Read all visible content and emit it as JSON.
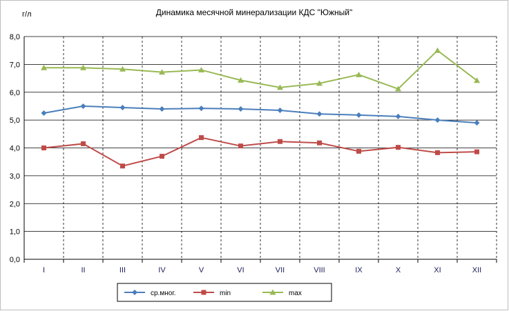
{
  "chart_data": {
    "type": "line",
    "title": "Динамика месячной минерализации КДС \"Южный\"",
    "ylabel": "г/л",
    "xlabel": "",
    "categories": [
      "I",
      "II",
      "III",
      "IV",
      "V",
      "VI",
      "VII",
      "VIII",
      "IX",
      "X",
      "XI",
      "XII"
    ],
    "ylim": [
      0,
      8
    ],
    "yticks": [
      "0,0",
      "1,0",
      "2,0",
      "3,0",
      "4,0",
      "5,0",
      "6,0",
      "7,0",
      "8,0"
    ],
    "grid": true,
    "legend_position": "bottom",
    "series": [
      {
        "name": "ср.мног.",
        "color": "#4a7ebb",
        "marker": "diamond",
        "values": [
          5.25,
          5.5,
          5.45,
          5.4,
          5.42,
          5.4,
          5.35,
          5.22,
          5.18,
          5.13,
          5.0,
          4.9
        ]
      },
      {
        "name": "min",
        "color": "#be4b48",
        "marker": "square",
        "values": [
          4.0,
          4.15,
          3.35,
          3.7,
          4.37,
          4.07,
          4.23,
          4.18,
          3.88,
          4.02,
          3.83,
          3.86
        ]
      },
      {
        "name": "max",
        "color": "#98b954",
        "marker": "triangle",
        "values": [
          6.88,
          6.88,
          6.83,
          6.72,
          6.8,
          6.43,
          6.17,
          6.32,
          6.63,
          6.12,
          7.5,
          6.42
        ]
      }
    ]
  }
}
